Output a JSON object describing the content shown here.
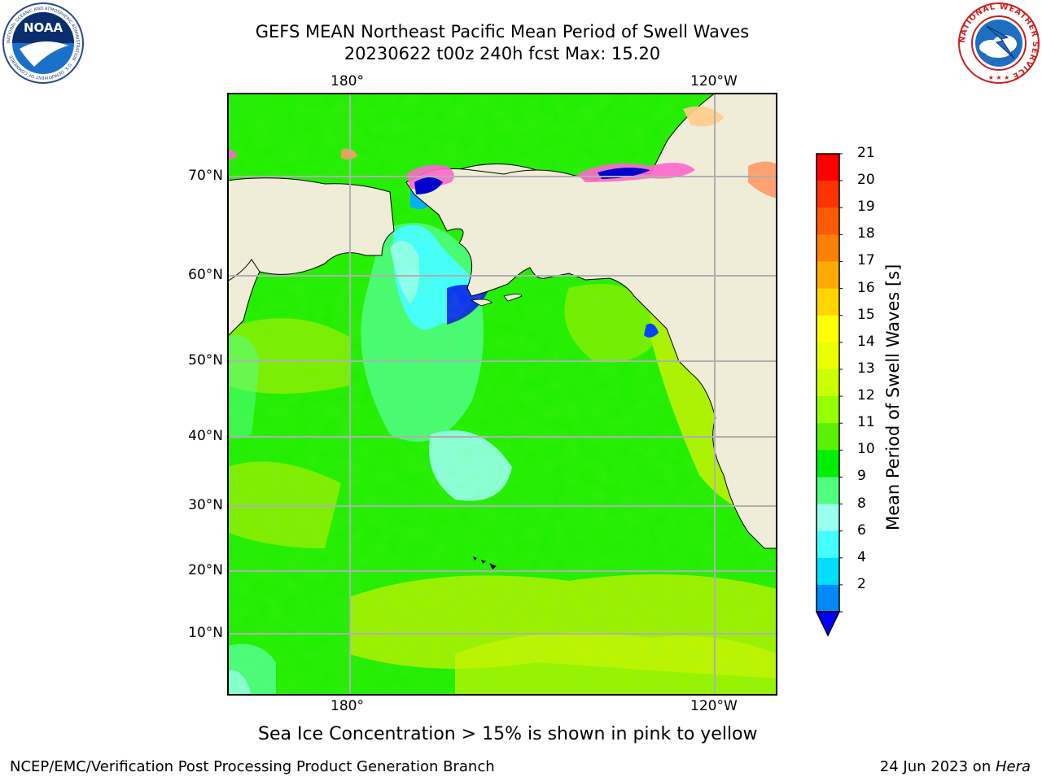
{
  "header": {
    "title_line1": "GEFS MEAN Northeast Pacific Mean Period of Swell Waves",
    "title_line2": "20230622 t00z 240h fcst   Max: 15.20"
  },
  "logos": {
    "left": {
      "name": "noaa-logo",
      "text": "NOAA",
      "ring_text": "NATIONAL OCEANIC AND ATMOSPHERIC ADMINISTRATION · U.S. DEPARTMENT OF COMMERCE"
    },
    "right": {
      "name": "nws-logo",
      "ring_text": "NATIONAL WEATHER SERVICE"
    }
  },
  "map": {
    "lon_labels_top": [
      "180°",
      "120°W"
    ],
    "lon_labels_bottom": [
      "180°",
      "120°W"
    ],
    "lat_labels": [
      "70°N",
      "60°N",
      "50°N",
      "40°N",
      "30°N",
      "20°N",
      "10°N"
    ],
    "colors": {
      "land": "#efecd8",
      "grid": "#b0b0b0"
    }
  },
  "colorbar": {
    "title": "Mean Period of Swell Waves [s]",
    "labels": [
      "21",
      "20",
      "19",
      "18",
      "17",
      "16",
      "15",
      "14",
      "13",
      "12",
      "11",
      "10",
      "9",
      "8",
      "6",
      "4",
      "2"
    ],
    "colors": [
      "#ff0000",
      "#ff3300",
      "#ff5a00",
      "#ff8000",
      "#ffaa00",
      "#ffd400",
      "#ffff00",
      "#eaff00",
      "#ccff00",
      "#96ff00",
      "#5af000",
      "#00ee00",
      "#50ff80",
      "#99ffee",
      "#44ffff",
      "#00ddff",
      "#0088ff",
      "#0000ff"
    ]
  },
  "caption": "Sea Ice Concentration > 15% is shown in pink to yellow",
  "footer": {
    "left": "NCEP/EMC/Verification Post Processing Product Generation Branch",
    "right_prefix": "24 Jun 2023 on ",
    "right_host": "Hera"
  }
}
